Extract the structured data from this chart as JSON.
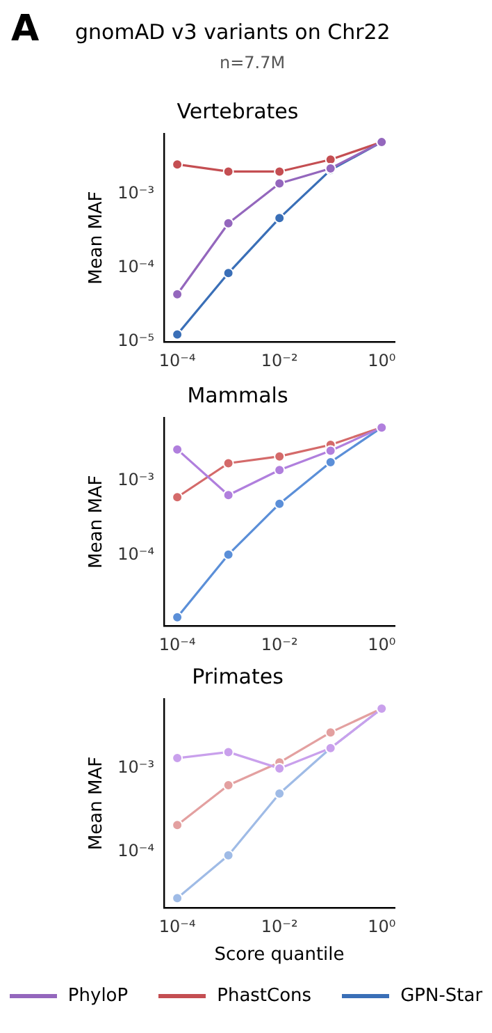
{
  "chart_data": [
    {
      "type": "line",
      "title": "Vertebrates",
      "ylabel": "Mean MAF",
      "annotations": [
        "A",
        "gnomAD v3 variants on Chr22",
        "n=7.7M"
      ],
      "log": "xy",
      "grid": false,
      "legend": "bottom",
      "marker": "circle",
      "line_style": "solid",
      "x": [
        0.0001,
        0.001,
        0.01,
        0.1,
        1
      ],
      "xlim": [
        5.5e-05,
        1.8
      ],
      "xticks": [
        {
          "value": 0.0001,
          "label": "10⁻⁴"
        },
        {
          "value": 0.01,
          "label": "10⁻²"
        },
        {
          "value": 1,
          "label": "10⁰"
        }
      ],
      "ylim": [
        1e-05,
        0.0065
      ],
      "yticks": [
        {
          "value": 1e-05,
          "label": "10⁻⁵"
        },
        {
          "value": 0.0001,
          "label": "10⁻⁴"
        },
        {
          "value": 0.001,
          "label": "10⁻³"
        }
      ],
      "series": [
        {
          "name": "PhyloP",
          "color": "#9467bd",
          "values": [
            4.4e-05,
            0.0004,
            0.00138,
            0.0022,
            0.005
          ]
        },
        {
          "name": "PhastCons",
          "color": "#c44e52",
          "values": [
            0.0025,
            0.002,
            0.002,
            0.0029,
            0.005
          ]
        },
        {
          "name": "GPN-Star",
          "color": "#3a6fb7",
          "values": [
            1.26e-05,
            8.5e-05,
            0.00047,
            0.0021,
            0.005
          ]
        }
      ]
    },
    {
      "type": "line",
      "title": "Mammals",
      "ylabel": "Mean MAF",
      "log": "xy",
      "grid": false,
      "marker": "circle",
      "line_style": "solid",
      "x": [
        0.0001,
        0.001,
        0.01,
        0.1,
        1
      ],
      "xlim": [
        5.5e-05,
        1.8
      ],
      "xticks": [
        {
          "value": 0.0001,
          "label": "10⁻⁴"
        },
        {
          "value": 0.01,
          "label": "10⁻²"
        },
        {
          "value": 1,
          "label": "10⁰"
        }
      ],
      "ylim": [
        1.15e-05,
        0.0069
      ],
      "yticks": [
        {
          "value": 0.0001,
          "label": "10⁻⁴"
        },
        {
          "value": 0.001,
          "label": "10⁻³"
        }
      ],
      "series": [
        {
          "color": "#b07fdd",
          "values": [
            0.0026,
            0.00064,
            0.00138,
            0.0025,
            0.0051
          ]
        },
        {
          "color": "#d46a6a",
          "values": [
            0.0006,
            0.0017,
            0.0021,
            0.003,
            0.0051
          ]
        },
        {
          "color": "#5b8fd8",
          "values": [
            1.5e-05,
            0.000103,
            0.00049,
            0.00176,
            0.0051
          ]
        }
      ]
    },
    {
      "type": "line",
      "title": "Primates",
      "xlabel": "Score quantile",
      "ylabel": "Mean MAF",
      "log": "xy",
      "grid": false,
      "marker": "circle",
      "line_style": "solid",
      "x": [
        0.0001,
        0.001,
        0.01,
        0.1,
        1
      ],
      "xlim": [
        5.5e-05,
        1.8
      ],
      "xticks": [
        {
          "value": 0.0001,
          "label": "10⁻⁴"
        },
        {
          "value": 0.01,
          "label": "10⁻²"
        },
        {
          "value": 1,
          "label": "10⁰"
        }
      ],
      "ylim": [
        2.15e-05,
        0.0068
      ],
      "yticks": [
        {
          "value": 0.0001,
          "label": "10⁻⁴"
        },
        {
          "value": 0.001,
          "label": "10⁻³"
        }
      ],
      "series": [
        {
          "color": "#c9a0ec",
          "values": [
            0.00133,
            0.00157,
            0.001,
            0.00175,
            0.0052
          ]
        },
        {
          "color": "#e3a0a0",
          "values": [
            0.00021,
            0.00063,
            0.00118,
            0.0027,
            0.0052
          ]
        },
        {
          "color": "#9fbbe6",
          "values": [
            2.8e-05,
            9.1e-05,
            0.0005,
            0.00175,
            0.0052
          ]
        }
      ]
    }
  ]
}
